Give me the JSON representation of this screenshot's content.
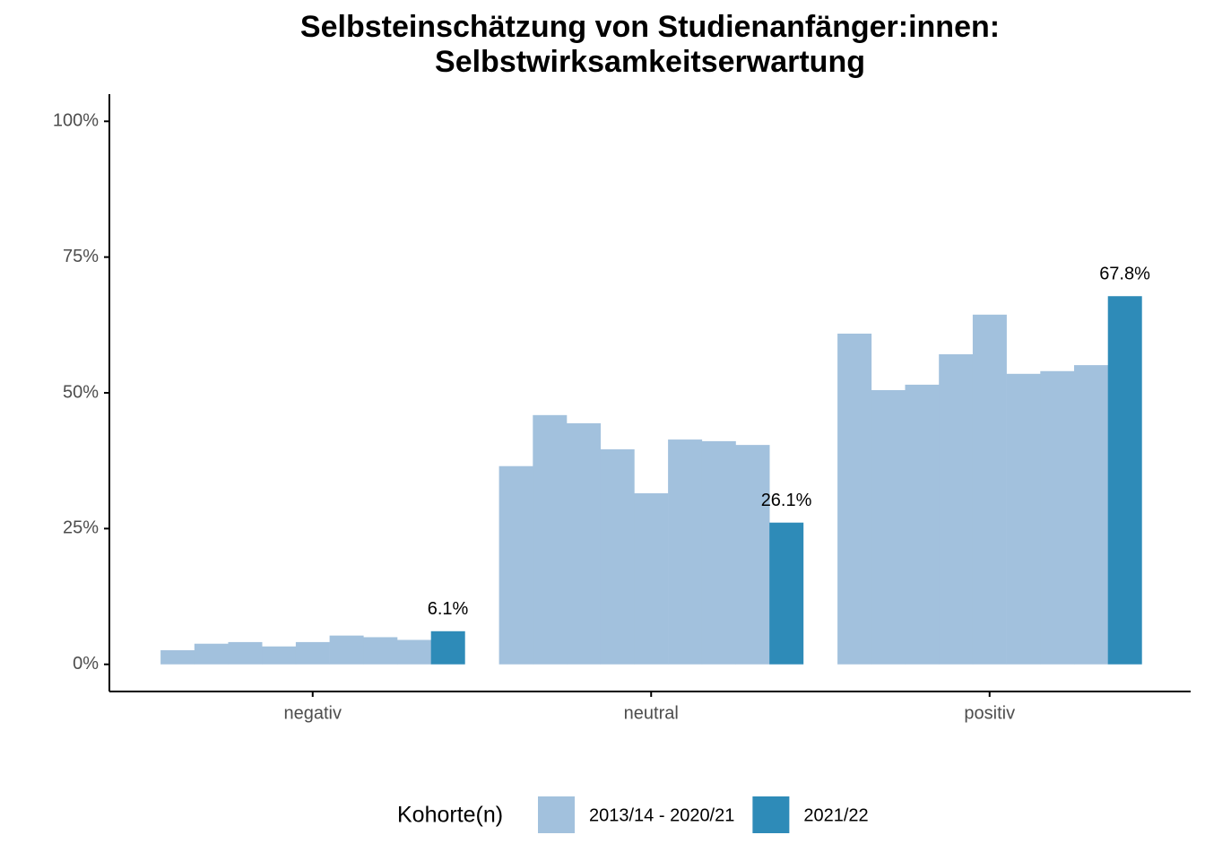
{
  "chart_data": {
    "type": "bar",
    "title": [
      "Selbsteinschätzung von Studienanfänger:innen:",
      "Selbstwirksamkeitserwartung"
    ],
    "categories": [
      "negativ",
      "neutral",
      "positiv"
    ],
    "series": [
      {
        "name": "2013/14 - 2020/21",
        "color": "#a2c1dd",
        "values": [
          [
            2.6,
            3.8,
            4.1,
            3.3,
            4.1,
            5.3,
            5.0,
            4.5
          ],
          [
            36.5,
            45.9,
            44.4,
            39.6,
            31.5,
            41.4,
            41.1,
            40.4
          ],
          [
            60.9,
            50.5,
            51.5,
            57.1,
            64.4,
            53.5,
            54.0,
            55.1
          ]
        ]
      },
      {
        "name": "2021/22",
        "color": "#2e8bb8",
        "values": [
          6.1,
          26.1,
          67.8
        ],
        "value_labels": [
          "6.1%",
          "26.1%",
          "67.8%"
        ]
      }
    ],
    "ylim": [
      -5,
      105
    ],
    "yticks": [
      {
        "value": 0,
        "label": "0%"
      },
      {
        "value": 25,
        "label": "25%"
      },
      {
        "value": 50,
        "label": "50%"
      },
      {
        "value": 75,
        "label": "75%"
      },
      {
        "value": 100,
        "label": "100%"
      }
    ],
    "legend_title": "Kohorte(n)",
    "legend_position": "bottom",
    "grid": false
  }
}
